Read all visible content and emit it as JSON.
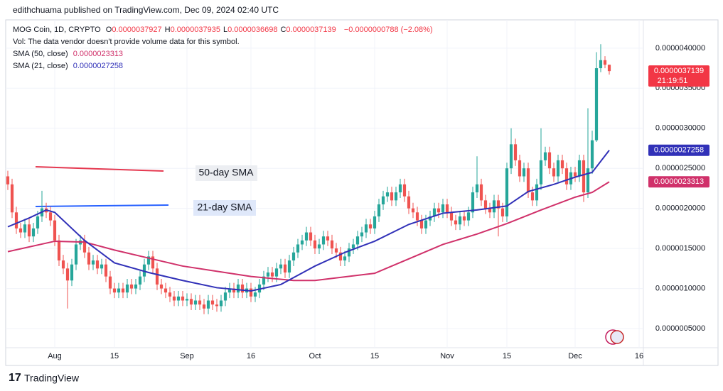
{
  "header": {
    "published": "edithchuama published on TradingView.com, Dec 09, 2024 02:40 UTC"
  },
  "legend": {
    "symbol": "MOG Coin, 1D, CRYPTO",
    "ohlc": [
      {
        "key": "O",
        "value": "0.0000037927"
      },
      {
        "key": "H",
        "value": "0.0000037935"
      },
      {
        "key": "L",
        "value": "0.0000036698"
      },
      {
        "key": "C",
        "value": "0.0000037139"
      }
    ],
    "change": "−0.0000000788 (−2.08%)",
    "volume": "Vol: The data vendor doesn't provide volume data for this symbol.",
    "sma50": {
      "name": "SMA (50, close)",
      "value": "0.0000023313"
    },
    "sma21": {
      "name": "SMA (21, close)",
      "value": "0.0000027258"
    }
  },
  "chart_data": {
    "type": "candlestick",
    "up_color": "#26a69a",
    "down_color": "#ef5350",
    "grid": true,
    "xlim": [
      -0.5,
      149
    ],
    "xticks": [
      {
        "value": 11,
        "label": "Aug"
      },
      {
        "value": 25,
        "label": "15"
      },
      {
        "value": 42,
        "label": "Sep"
      },
      {
        "value": 57,
        "label": "16"
      },
      {
        "value": 72,
        "label": "Oct"
      },
      {
        "value": 86,
        "label": "15"
      },
      {
        "value": 103,
        "label": "Nov"
      },
      {
        "value": 117,
        "label": "15"
      },
      {
        "value": 133,
        "label": "Dec"
      },
      {
        "value": 148,
        "label": "16"
      }
    ],
    "ylim": [
      2.61e-07,
      4.353e-06
    ],
    "yticks": [
      {
        "value": 5e-07,
        "label": "0.0000005000"
      },
      {
        "value": 1e-06,
        "label": "0.0000010000"
      },
      {
        "value": 1.5e-06,
        "label": "0.0000015000"
      },
      {
        "value": 2e-06,
        "label": "0.0000020000"
      },
      {
        "value": 2.5e-06,
        "label": "0.0000025000"
      },
      {
        "value": 3e-06,
        "label": "0.0000030000"
      },
      {
        "value": 3.5e-06,
        "label": "0.0000035000"
      },
      {
        "value": 4e-06,
        "label": "0.0000040000"
      }
    ],
    "candles": [
      [
        2.4e-06,
        2.47e-06,
        2.23e-06,
        2.3e-06
      ],
      [
        2.3e-06,
        2.37e-06,
        1.88e-06,
        1.95e-06
      ],
      [
        1.95e-06,
        2.02e-06,
        1.68e-06,
        1.75e-06
      ],
      [
        1.75e-06,
        1.82e-06,
        1.63e-06,
        1.7e-06
      ],
      [
        1.7e-06,
        1.87e-06,
        1.63e-06,
        1.8e-06
      ],
      [
        1.8e-06,
        1.87e-06,
        1.58e-06,
        1.65e-06
      ],
      [
        1.65e-06,
        1.82e-06,
        1.58e-06,
        1.75e-06
      ],
      [
        1.75e-06,
        1.97e-06,
        1.68e-06,
        1.9e-06
      ],
      [
        1.9e-06,
        2.22e-06,
        1.83e-06,
        2e-06
      ],
      [
        2e-06,
        2.07e-06,
        1.88e-06,
        1.95e-06
      ],
      [
        1.95e-06,
        2.02e-06,
        1.78e-06,
        1.85e-06
      ],
      [
        1.85e-06,
        1.92e-06,
        1.53e-06,
        1.6e-06
      ],
      [
        1.6e-06,
        1.67e-06,
        1.28e-06,
        1.35e-06
      ],
      [
        1.35e-06,
        1.42e-06,
        1.18e-06,
        1.25e-06
      ],
      [
        1.25e-06,
        1.32e-06,
        7.5e-07,
        1.1e-06
      ],
      [
        1.1e-06,
        1.37e-06,
        1.03e-06,
        1.3e-06
      ],
      [
        1.3e-06,
        1.62e-06,
        1.23e-06,
        1.55e-06
      ],
      [
        1.55e-06,
        1.67e-06,
        1.48e-06,
        1.6e-06
      ],
      [
        1.6e-06,
        1.67e-06,
        1.38e-06,
        1.45e-06
      ],
      [
        1.45e-06,
        1.52e-06,
        1.23e-06,
        1.3e-06
      ],
      [
        1.3e-06,
        1.42e-06,
        1.23e-06,
        1.35e-06
      ],
      [
        1.35e-06,
        1.42e-06,
        1.18e-06,
        1.25e-06
      ],
      [
        1.25e-06,
        1.37e-06,
        1.18e-06,
        1.3e-06
      ],
      [
        1.3e-06,
        1.37e-06,
        1.08e-06,
        1.15e-06
      ],
      [
        1.15e-06,
        1.22e-06,
        9.3e-07,
        1e-06
      ],
      [
        1e-06,
        1.07e-06,
        8.8e-07,
        9.5e-07
      ],
      [
        9.5e-07,
        1.07e-06,
        8.8e-07,
        1e-06
      ],
      [
        1e-06,
        1.07e-06,
        8.8e-07,
        9.5e-07
      ],
      [
        9.5e-07,
        1.12e-06,
        8.8e-07,
        1.05e-06
      ],
      [
        1.05e-06,
        1.12e-06,
        9.3e-07,
        1e-06
      ],
      [
        1e-06,
        1.12e-06,
        9.3e-07,
        1.05e-06
      ],
      [
        1.05e-06,
        1.22e-06,
        9.8e-07,
        1.15e-06
      ],
      [
        1.15e-06,
        1.37e-06,
        1.08e-06,
        1.3e-06
      ],
      [
        1.3e-06,
        1.47e-06,
        1.23e-06,
        1.4e-06
      ],
      [
        1.4e-06,
        1.47e-06,
        1.18e-06,
        1.25e-06
      ],
      [
        1.25e-06,
        1.32e-06,
        9.8e-07,
        1.05e-06
      ],
      [
        1.05e-06,
        1.12e-06,
        9.3e-07,
        1e-06
      ],
      [
        1e-06,
        1.07e-06,
        8.8e-07,
        9.5e-07
      ],
      [
        9.5e-07,
        1.02e-06,
        8.3e-07,
        9e-07
      ],
      [
        9e-07,
        9.7e-07,
        7.8e-07,
        8.5e-07
      ],
      [
        8.5e-07,
        9.7e-07,
        7.8e-07,
        9e-07
      ],
      [
        9e-07,
        9.7e-07,
        7.8e-07,
        8.5e-07
      ],
      [
        8.5e-07,
        9.4e-07,
        7.8e-07,
        8.7e-07
      ],
      [
        8.7e-07,
        9.4e-07,
        7.3e-07,
        8e-07
      ],
      [
        8e-07,
        9.2e-07,
        7.3e-07,
        8.5e-07
      ],
      [
        8.5e-07,
        9.2e-07,
        7.3e-07,
        8e-07
      ],
      [
        8e-07,
        8.7e-07,
        6.8e-07,
        7.5e-07
      ],
      [
        7.5e-07,
        9.2e-07,
        6.8e-07,
        8.5e-07
      ],
      [
        8.5e-07,
        9.2e-07,
        7.3e-07,
        8e-07
      ],
      [
        8e-07,
        8.7e-07,
        7.1e-07,
        7.8e-07
      ],
      [
        7.8e-07,
        9.2e-07,
        7.1e-07,
        8.5e-07
      ],
      [
        8.5e-07,
        1.02e-06,
        7.8e-07,
        9.5e-07
      ],
      [
        9.5e-07,
        1.07e-06,
        8.8e-07,
        1e-06
      ],
      [
        1e-06,
        1.07e-06,
        8.8e-07,
        9.5e-07
      ],
      [
        9.5e-07,
        1.12e-06,
        8.8e-07,
        1.05e-06
      ],
      [
        1.05e-06,
        1.12e-06,
        8.8e-07,
        9.5e-07
      ],
      [
        9.5e-07,
        1.07e-06,
        8.8e-07,
        1e-06
      ],
      [
        1e-06,
        1.07e-06,
        8.3e-07,
        9e-07
      ],
      [
        9e-07,
        1.02e-06,
        8.3e-07,
        9.5e-07
      ],
      [
        9.5e-07,
        1.12e-06,
        8.8e-07,
        1.05e-06
      ],
      [
        1.05e-06,
        1.22e-06,
        9.8e-07,
        1.15e-06
      ],
      [
        1.15e-06,
        1.27e-06,
        1.08e-06,
        1.2e-06
      ],
      [
        1.2e-06,
        1.27e-06,
        1.08e-06,
        1.15e-06
      ],
      [
        1.15e-06,
        1.32e-06,
        1.08e-06,
        1.25e-06
      ],
      [
        1.25e-06,
        1.37e-06,
        1.18e-06,
        1.3e-06
      ],
      [
        1.3e-06,
        1.37e-06,
        1.13e-06,
        1.2e-06
      ],
      [
        1.2e-06,
        1.42e-06,
        1.13e-06,
        1.35e-06
      ],
      [
        1.35e-06,
        1.52e-06,
        1.28e-06,
        1.45e-06
      ],
      [
        1.45e-06,
        1.62e-06,
        1.38e-06,
        1.55e-06
      ],
      [
        1.55e-06,
        1.67e-06,
        1.48e-06,
        1.6e-06
      ],
      [
        1.6e-06,
        1.77e-06,
        1.53e-06,
        1.7e-06
      ],
      [
        1.7e-06,
        1.77e-06,
        1.53e-06,
        1.6e-06
      ],
      [
        1.6e-06,
        1.67e-06,
        1.43e-06,
        1.5e-06
      ],
      [
        1.5e-06,
        1.62e-06,
        1.43e-06,
        1.55e-06
      ],
      [
        1.55e-06,
        1.72e-06,
        1.48e-06,
        1.65e-06
      ],
      [
        1.65e-06,
        1.72e-06,
        1.53e-06,
        1.6e-06
      ],
      [
        1.6e-06,
        1.67e-06,
        1.43e-06,
        1.5e-06
      ],
      [
        1.5e-06,
        1.57e-06,
        1.38e-06,
        1.45e-06
      ],
      [
        1.45e-06,
        1.52e-06,
        1.28e-06,
        1.35e-06
      ],
      [
        1.35e-06,
        1.47e-06,
        1.28e-06,
        1.4e-06
      ],
      [
        1.4e-06,
        1.57e-06,
        1.33e-06,
        1.5e-06
      ],
      [
        1.5e-06,
        1.62e-06,
        1.43e-06,
        1.55e-06
      ],
      [
        1.55e-06,
        1.72e-06,
        1.48e-06,
        1.65e-06
      ],
      [
        1.65e-06,
        1.77e-06,
        1.58e-06,
        1.7e-06
      ],
      [
        1.7e-06,
        1.87e-06,
        1.63e-06,
        1.8e-06
      ],
      [
        1.8e-06,
        1.87e-06,
        1.68e-06,
        1.75e-06
      ],
      [
        1.75e-06,
        1.97e-06,
        1.68e-06,
        1.9e-06
      ],
      [
        1.9e-06,
        2.12e-06,
        1.83e-06,
        2.05e-06
      ],
      [
        2.05e-06,
        2.22e-06,
        1.98e-06,
        2.15e-06
      ],
      [
        2.15e-06,
        2.27e-06,
        2.08e-06,
        2.2e-06
      ],
      [
        2.2e-06,
        2.27e-06,
        2.03e-06,
        2.1e-06
      ],
      [
        2.1e-06,
        2.27e-06,
        2.03e-06,
        2.2e-06
      ],
      [
        2.2e-06,
        2.37e-06,
        2.13e-06,
        2.3e-06
      ],
      [
        2.3e-06,
        2.37e-06,
        2.08e-06,
        2.15e-06
      ],
      [
        2.15e-06,
        2.22e-06,
        1.93e-06,
        2e-06
      ],
      [
        2e-06,
        2.07e-06,
        1.88e-06,
        1.95e-06
      ],
      [
        1.95e-06,
        2.02e-06,
        1.78e-06,
        1.85e-06
      ],
      [
        1.85e-06,
        1.92e-06,
        1.68e-06,
        1.75e-06
      ],
      [
        1.75e-06,
        1.92e-06,
        1.68e-06,
        1.85e-06
      ],
      [
        1.85e-06,
        1.97e-06,
        1.78e-06,
        1.9e-06
      ],
      [
        1.9e-06,
        2.07e-06,
        1.83e-06,
        2e-06
      ],
      [
        2e-06,
        2.07e-06,
        1.88e-06,
        1.95e-06
      ],
      [
        1.95e-06,
        2.12e-06,
        1.88e-06,
        2.05e-06
      ],
      [
        2.05e-06,
        2.12e-06,
        1.88e-06,
        1.95e-06
      ],
      [
        1.95e-06,
        2.02e-06,
        1.78e-06,
        1.85e-06
      ],
      [
        1.85e-06,
        1.92e-06,
        1.73e-06,
        1.8e-06
      ],
      [
        1.8e-06,
        1.97e-06,
        1.73e-06,
        1.9e-06
      ],
      [
        1.9e-06,
        1.97e-06,
        1.78e-06,
        1.85e-06
      ],
      [
        1.85e-06,
        2.02e-06,
        1.78e-06,
        1.95e-06
      ],
      [
        1.95e-06,
        2.27e-06,
        1.88e-06,
        2.2e-06
      ],
      [
        2.2e-06,
        2.65e-06,
        2.13e-06,
        2.3e-06
      ],
      [
        2.3e-06,
        2.37e-06,
        2.03e-06,
        2.1e-06
      ],
      [
        2.1e-06,
        2.17e-06,
        1.93e-06,
        2e-06
      ],
      [
        2e-06,
        2.07e-06,
        1.88e-06,
        1.95e-06
      ],
      [
        1.95e-06,
        2.17e-06,
        1.88e-06,
        2.1e-06
      ],
      [
        2.1e-06,
        2.17e-06,
        1.65e-06,
        2e-06
      ],
      [
        2e-06,
        2.07e-06,
        1.83e-06,
        1.9e-06
      ],
      [
        1.9e-06,
        2.57e-06,
        1.83e-06,
        2.5e-06
      ],
      [
        2.5e-06,
        3e-06,
        2.43e-06,
        2.8e-06
      ],
      [
        2.8e-06,
        2.87e-06,
        2.53e-06,
        2.6e-06
      ],
      [
        2.6e-06,
        2.67e-06,
        2.33e-06,
        2.4e-06
      ],
      [
        2.4e-06,
        2.57e-06,
        2.33e-06,
        2.5e-06
      ],
      [
        2.5e-06,
        2.57e-06,
        2.13e-06,
        2.2e-06
      ],
      [
        2.2e-06,
        2.27e-06,
        2.03e-06,
        2.1e-06
      ],
      [
        2.1e-06,
        2.37e-06,
        2.03e-06,
        2.3e-06
      ],
      [
        2.3e-06,
        3e-06,
        2.23e-06,
        2.6e-06
      ],
      [
        2.6e-06,
        2.77e-06,
        2.53e-06,
        2.7e-06
      ],
      [
        2.7e-06,
        2.77e-06,
        2.43e-06,
        2.5e-06
      ],
      [
        2.5e-06,
        2.57e-06,
        2.33e-06,
        2.4e-06
      ],
      [
        2.4e-06,
        2.67e-06,
        2.33e-06,
        2.6e-06
      ],
      [
        2.6e-06,
        2.67e-06,
        2.43e-06,
        2.5e-06
      ],
      [
        2.5e-06,
        2.57e-06,
        2.23e-06,
        2.3e-06
      ],
      [
        2.3e-06,
        2.52e-06,
        2.23e-06,
        2.45e-06
      ],
      [
        2.45e-06,
        2.52e-06,
        2.33e-06,
        2.4e-06
      ],
      [
        2.4e-06,
        2.67e-06,
        2.33e-06,
        2.6e-06
      ],
      [
        2.6e-06,
        2.67e-06,
        2.08e-06,
        2.2e-06
      ],
      [
        2.2e-06,
        3.25e-06,
        2.13e-06,
        2.5e-06
      ],
      [
        2.5e-06,
        2.97e-06,
        2.43e-06,
        2.85e-06
      ],
      [
        2.85e-06,
        3.95e-06,
        2.83e-06,
        3.75e-06
      ],
      [
        3.75e-06,
        4.05e-06,
        3.7e-06,
        3.85e-06
      ],
      [
        3.85e-06,
        3.9e-06,
        3.75e-06,
        3.7927e-06
      ],
      [
        3.7927e-06,
        3.7935e-06,
        3.6698e-06,
        3.7139e-06
      ]
    ],
    "last_price_label": "0.0000037139",
    "countdown": "21:19:51",
    "price_label_color": "#f23645",
    "series": [
      {
        "name": "SMA (50, close)",
        "color": "#d0316a",
        "price_label": "0.0000023313",
        "x": [
          0,
          11,
          18,
          25,
          33,
          41,
          57,
          67,
          72,
          86,
          94,
          102,
          110,
          117,
          125,
          133,
          137,
          141
        ],
        "values": [
          1.46e-06,
          1.59e-06,
          1.58e-06,
          1.48e-06,
          1.38e-06,
          1.28e-06,
          1.15e-06,
          1.1e-06,
          1.1e-06,
          1.19e-06,
          1.37e-06,
          1.55e-06,
          1.68e-06,
          1.81e-06,
          1.98e-06,
          2.14e-06,
          2.2e-06,
          2.3313e-06
        ]
      },
      {
        "name": "SMA (21, close)",
        "color": "#3131b8",
        "price_label": "0.0000027258",
        "x": [
          0,
          5,
          9,
          11,
          18,
          25,
          33,
          41,
          49,
          57,
          64,
          72,
          79,
          86,
          94,
          102,
          110,
          117,
          122,
          128,
          133,
          137,
          141
        ],
        "values": [
          1.77e-06,
          1.88e-06,
          1.98e-06,
          1.95e-06,
          1.6e-06,
          1.32e-06,
          1.2e-06,
          1.1e-06,
          1.01e-06,
          9.7e-07,
          1.05e-06,
          1.28e-06,
          1.45e-06,
          1.59e-06,
          1.8e-06,
          1.94e-06,
          1.98e-06,
          2.03e-06,
          2.21e-06,
          2.3e-06,
          2.39e-06,
          2.45e-06,
          2.7258e-06
        ]
      }
    ],
    "annotations": [
      {
        "text": "50-day SMA",
        "color": "#e53950"
      },
      {
        "text": "21-day SMA",
        "color": "#2962ff"
      }
    ]
  },
  "footer": {
    "brand": "TradingView"
  }
}
